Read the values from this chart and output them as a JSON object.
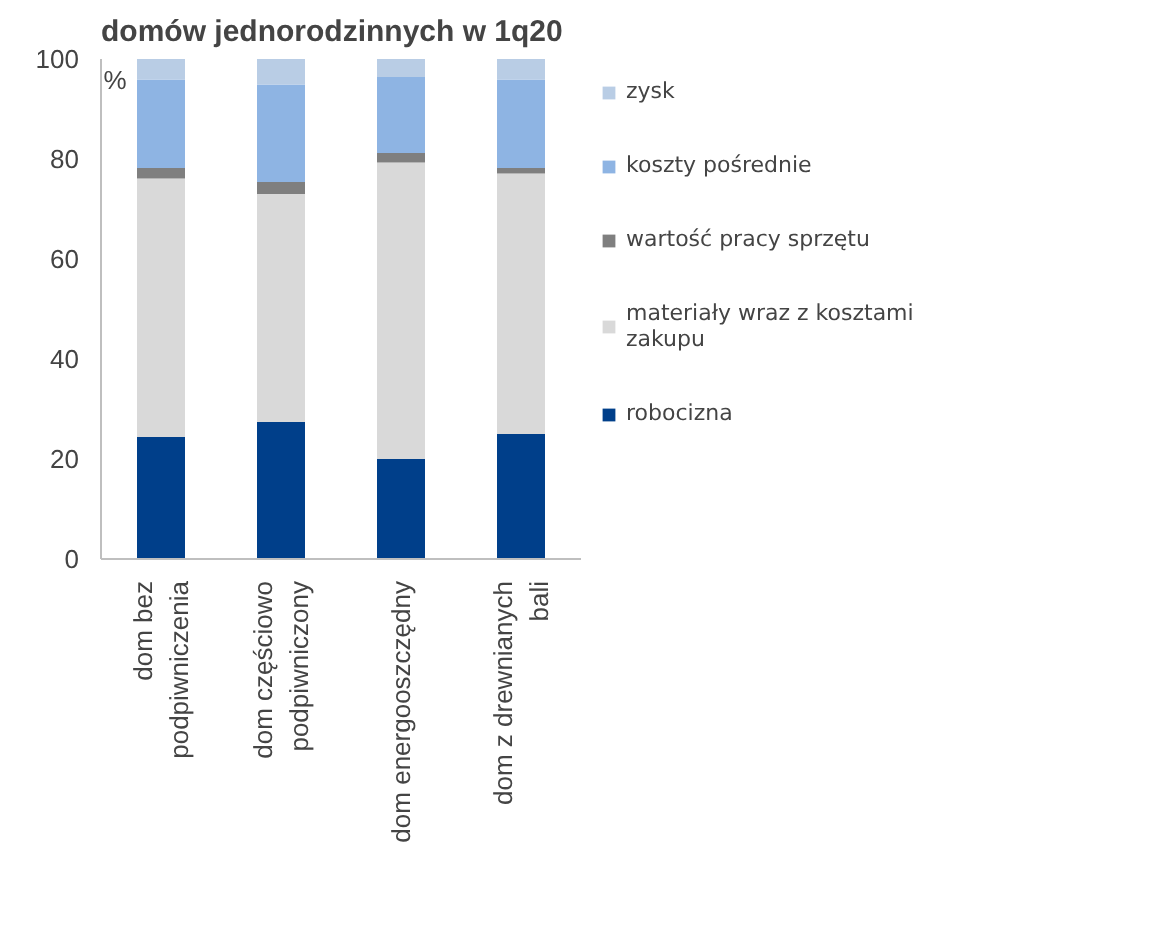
{
  "chart_data": {
    "type": "bar",
    "stacked": true,
    "title": "domów jednorodzinnych w 1q20",
    "ylabel": "%",
    "categories": [
      "dom bez\npodpiwniczenia",
      "dom częściowo\npodpiwniczony",
      "dom energooszczędny",
      "dom z drewnianych\nbali"
    ],
    "series": [
      {
        "name": "robocizna",
        "color": "#003f8a",
        "values": [
          24.4,
          27.4,
          20.0,
          25.0
        ]
      },
      {
        "name": "materiały wraz z kosztami\nzakupu",
        "color": "#d9d9d9",
        "values": [
          51.7,
          45.6,
          59.3,
          52.1
        ]
      },
      {
        "name": "wartość pracy sprzętu",
        "color": "#7f7f7f",
        "values": [
          2.1,
          2.4,
          1.9,
          1.1
        ]
      },
      {
        "name": "koszty pośrednie",
        "color": "#8eb4e3",
        "values": [
          17.7,
          19.5,
          15.2,
          17.7
        ]
      },
      {
        "name": "zysk",
        "color": "#b9cde5",
        "values": [
          4.1,
          5.1,
          3.6,
          4.1
        ]
      }
    ],
    "ylim": [
      0,
      100
    ],
    "yticks": [
      0,
      20,
      40,
      60,
      80,
      100
    ],
    "grid": false,
    "legend": "right"
  }
}
